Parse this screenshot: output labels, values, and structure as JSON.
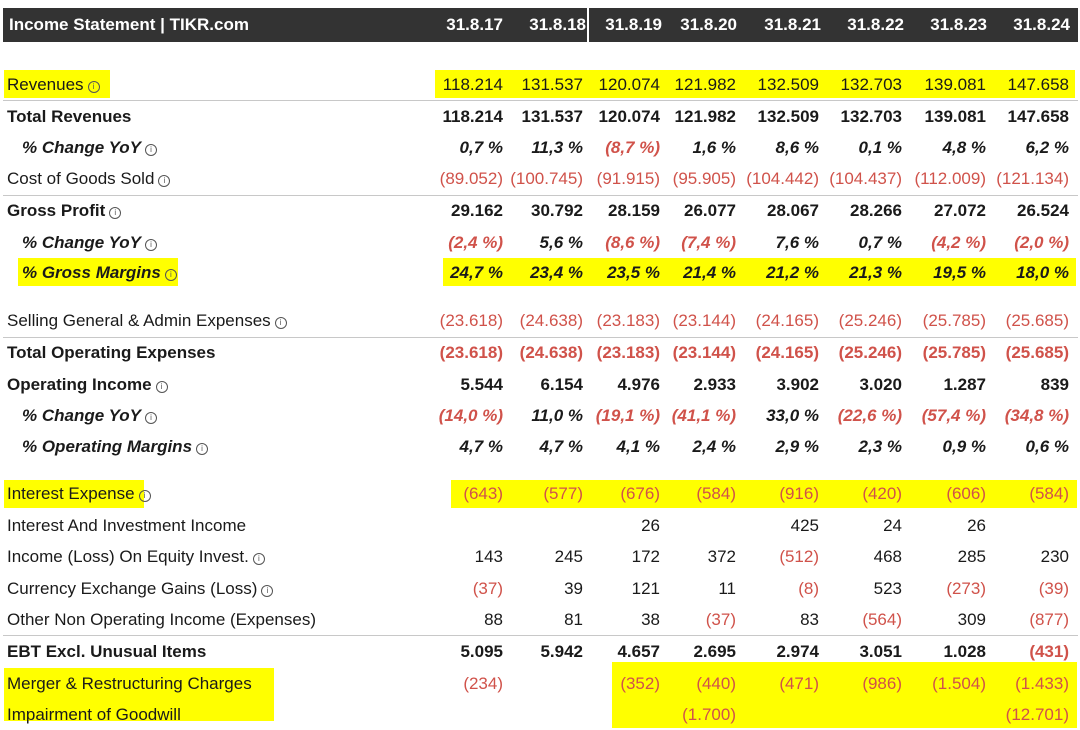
{
  "header": {
    "title": "Income Statement | TIKR.com",
    "periods": [
      "31.8.17",
      "31.8.18",
      "31.8.19",
      "31.8.20",
      "31.8.21",
      "31.8.22",
      "31.8.23",
      "31.8.24"
    ]
  },
  "info_glyph": "i",
  "colors": {
    "highlight": "#ffff00",
    "negative": "#d0524a",
    "header_bg": "#333333"
  },
  "rows": [
    {
      "label": "Revenues",
      "info": true,
      "values": [
        "118.214",
        "131.537",
        "120.074",
        "121.982",
        "132.509",
        "132.703",
        "139.081",
        "147.658"
      ]
    },
    {
      "label": "Total Revenues",
      "values": [
        "118.214",
        "131.537",
        "120.074",
        "121.982",
        "132.509",
        "132.703",
        "139.081",
        "147.658"
      ]
    },
    {
      "label": "% Change YoY",
      "info": true,
      "values": [
        "0,7 %",
        "11,3 %",
        "(8,7 %)",
        "1,6 %",
        "8,6 %",
        "0,1 %",
        "4,8 %",
        "6,2 %"
      ]
    },
    {
      "label": "Cost of Goods Sold",
      "info": true,
      "values": [
        "(89.052)",
        "(100.745)",
        "(91.915)",
        "(95.905)",
        "(104.442)",
        "(104.437)",
        "(112.009)",
        "(121.134)"
      ]
    },
    {
      "label": "Gross Profit",
      "info": true,
      "values": [
        "29.162",
        "30.792",
        "28.159",
        "26.077",
        "28.067",
        "28.266",
        "27.072",
        "26.524"
      ]
    },
    {
      "label": "% Change YoY",
      "info": true,
      "values": [
        "(2,4 %)",
        "5,6 %",
        "(8,6 %)",
        "(7,4 %)",
        "7,6 %",
        "0,7 %",
        "(4,2 %)",
        "(2,0 %)"
      ]
    },
    {
      "label": "% Gross Margins",
      "info": true,
      "values": [
        "24,7 %",
        "23,4 %",
        "23,5 %",
        "21,4 %",
        "21,2 %",
        "21,3 %",
        "19,5 %",
        "18,0 %"
      ]
    },
    {
      "label": "Selling General & Admin Expenses",
      "info": true,
      "values": [
        "(23.618)",
        "(24.638)",
        "(23.183)",
        "(23.144)",
        "(24.165)",
        "(25.246)",
        "(25.785)",
        "(25.685)"
      ]
    },
    {
      "label": "Total Operating Expenses",
      "values": [
        "(23.618)",
        "(24.638)",
        "(23.183)",
        "(23.144)",
        "(24.165)",
        "(25.246)",
        "(25.785)",
        "(25.685)"
      ]
    },
    {
      "label": "Operating Income",
      "info": true,
      "values": [
        "5.544",
        "6.154",
        "4.976",
        "2.933",
        "3.902",
        "3.020",
        "1.287",
        "839"
      ]
    },
    {
      "label": "% Change YoY",
      "info": true,
      "values": [
        "(14,0 %)",
        "11,0 %",
        "(19,1 %)",
        "(41,1 %)",
        "33,0 %",
        "(22,6 %)",
        "(57,4 %)",
        "(34,8 %)"
      ]
    },
    {
      "label": "% Operating Margins",
      "info": true,
      "values": [
        "4,7 %",
        "4,7 %",
        "4,1 %",
        "2,4 %",
        "2,9 %",
        "2,3 %",
        "0,9 %",
        "0,6 %"
      ]
    },
    {
      "label": "Interest Expense",
      "info": true,
      "values": [
        "(643)",
        "(577)",
        "(676)",
        "(584)",
        "(916)",
        "(420)",
        "(606)",
        "(584)"
      ]
    },
    {
      "label": "Interest And Investment Income",
      "values": [
        "",
        "",
        "26",
        "",
        "425",
        "24",
        "26",
        ""
      ]
    },
    {
      "label": "Income (Loss) On Equity Invest.",
      "info": true,
      "values": [
        "143",
        "245",
        "172",
        "372",
        "(512)",
        "468",
        "285",
        "230"
      ]
    },
    {
      "label": "Currency Exchange Gains (Loss)",
      "info": true,
      "values": [
        "(37)",
        "39",
        "121",
        "11",
        "(8)",
        "523",
        "(273)",
        "(39)"
      ]
    },
    {
      "label": "Other Non Operating Income (Expenses)",
      "values": [
        "88",
        "81",
        "38",
        "(37)",
        "83",
        "(564)",
        "309",
        "(877)"
      ]
    },
    {
      "label": "EBT Excl. Unusual Items",
      "values": [
        "5.095",
        "5.942",
        "4.657",
        "2.695",
        "2.974",
        "3.051",
        "1.028",
        "(431)"
      ]
    },
    {
      "label": "Merger & Restructuring Charges",
      "values": [
        "(234)",
        "",
        "(352)",
        "(440)",
        "(471)",
        "(986)",
        "(1.504)",
        "(1.433)"
      ]
    },
    {
      "label": "Impairment of Goodwill",
      "values": [
        "",
        "",
        "",
        "(1.700)",
        "",
        "",
        "",
        "(12.701)"
      ]
    }
  ]
}
